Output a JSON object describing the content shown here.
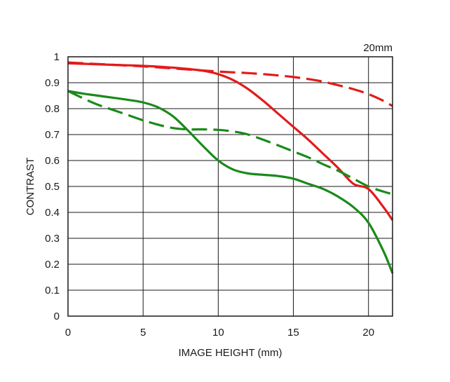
{
  "chart_data": {
    "type": "line",
    "title": "",
    "annotation": "20mm",
    "xlabel": "IMAGE HEIGHT (mm)",
    "ylabel": "CONTRAST",
    "xlim": [
      0,
      21.6
    ],
    "ylim": [
      0,
      1
    ],
    "xticks": [
      0,
      5,
      10,
      15,
      20
    ],
    "yticks": [
      0,
      0.1,
      0.2,
      0.3,
      0.4,
      0.5,
      0.6,
      0.7,
      0.8,
      0.9,
      1
    ],
    "xtick_labels": [
      "0",
      "5",
      "10",
      "15",
      "20"
    ],
    "ytick_labels": [
      "0",
      "0.1",
      "0.2",
      "0.3",
      "0.4",
      "0.5",
      "0.6",
      "0.7",
      "0.8",
      "0.9",
      "1"
    ],
    "grid": true,
    "legend": "none",
    "series": [
      {
        "color": "#e31b1b",
        "style": "solid",
        "x": [
          0,
          1,
          2,
          3,
          4,
          5,
          6,
          7,
          8,
          9,
          10,
          11,
          12,
          13,
          14,
          15,
          16,
          17,
          18,
          19,
          20,
          21,
          21.6
        ],
        "y": [
          0.975,
          0.973,
          0.971,
          0.969,
          0.967,
          0.965,
          0.962,
          0.958,
          0.953,
          0.946,
          0.933,
          0.91,
          0.875,
          0.83,
          0.78,
          0.73,
          0.68,
          0.625,
          0.57,
          0.51,
          0.49,
          0.42,
          0.37
        ]
      },
      {
        "color": "#e31b1b",
        "style": "dashed",
        "x": [
          0,
          1,
          2,
          3,
          4,
          5,
          6,
          7,
          8,
          9,
          10,
          11,
          12,
          13,
          14,
          15,
          16,
          17,
          18,
          19,
          20,
          21,
          21.6
        ],
        "y": [
          0.978,
          0.975,
          0.972,
          0.969,
          0.966,
          0.963,
          0.959,
          0.955,
          0.951,
          0.947,
          0.943,
          0.94,
          0.937,
          0.933,
          0.928,
          0.922,
          0.914,
          0.904,
          0.89,
          0.875,
          0.856,
          0.83,
          0.81
        ]
      },
      {
        "color": "#1a8a1a",
        "style": "solid",
        "x": [
          0,
          1,
          2,
          3,
          4,
          5,
          6,
          7,
          8,
          9,
          10,
          11,
          12,
          13,
          14,
          15,
          16,
          17,
          18,
          19,
          20,
          21,
          21.6
        ],
        "y": [
          0.868,
          0.858,
          0.85,
          0.842,
          0.834,
          0.824,
          0.805,
          0.77,
          0.715,
          0.655,
          0.6,
          0.565,
          0.55,
          0.545,
          0.54,
          0.53,
          0.51,
          0.49,
          0.46,
          0.42,
          0.36,
          0.25,
          0.165
        ]
      },
      {
        "color": "#1a8a1a",
        "style": "dashed",
        "x": [
          0,
          1,
          2,
          3,
          4,
          5,
          6,
          7,
          8,
          9,
          10,
          11,
          12,
          13,
          14,
          15,
          16,
          17,
          18,
          19,
          20,
          21,
          21.6
        ],
        "y": [
          0.868,
          0.84,
          0.815,
          0.795,
          0.775,
          0.755,
          0.738,
          0.725,
          0.72,
          0.72,
          0.718,
          0.712,
          0.7,
          0.68,
          0.658,
          0.635,
          0.612,
          0.585,
          0.56,
          0.53,
          0.5,
          0.48,
          0.47
        ]
      }
    ]
  }
}
